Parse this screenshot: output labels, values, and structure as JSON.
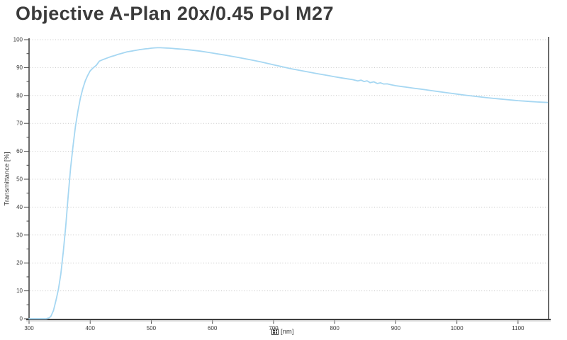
{
  "header": {
    "title_color": "#3b3b3b"
  },
  "chart_data": {
    "type": "line",
    "title": "Objective A-Plan 20x/0.45 Pol M27",
    "xlabel": "[nm]",
    "xlabel_prefix_icon": "missing-glyph-box",
    "ylabel": "Transmittance [%]",
    "xlim": [
      300,
      1150
    ],
    "ylim": [
      0,
      100
    ],
    "x_ticks": [
      300,
      400,
      500,
      600,
      700,
      800,
      900,
      1000,
      1100
    ],
    "y_ticks": [
      0,
      10,
      20,
      30,
      40,
      50,
      60,
      70,
      80,
      90,
      100
    ],
    "y_minor_tick_step": 5,
    "grid": "horizontal-dotted",
    "legend": "none",
    "line_color": "#a6d7f2",
    "series": [
      {
        "name": "Transmittance",
        "points": [
          [
            300,
            0
          ],
          [
            310,
            0
          ],
          [
            320,
            0
          ],
          [
            328,
            0
          ],
          [
            333,
            0.3
          ],
          [
            336,
            1
          ],
          [
            340,
            3
          ],
          [
            344,
            6.5
          ],
          [
            348,
            10.5
          ],
          [
            352,
            16
          ],
          [
            356,
            24
          ],
          [
            360,
            33
          ],
          [
            364,
            44
          ],
          [
            368,
            54
          ],
          [
            372,
            62
          ],
          [
            376,
            69
          ],
          [
            380,
            74.5
          ],
          [
            384,
            79
          ],
          [
            388,
            82.5
          ],
          [
            392,
            85.2
          ],
          [
            396,
            87.2
          ],
          [
            400,
            88.8
          ],
          [
            405,
            89.9
          ],
          [
            410,
            90.8
          ],
          [
            415,
            92.3
          ],
          [
            420,
            92.8
          ],
          [
            425,
            93.2
          ],
          [
            430,
            93.6
          ],
          [
            435,
            94
          ],
          [
            440,
            94.3
          ],
          [
            445,
            94.7
          ],
          [
            450,
            95
          ],
          [
            455,
            95.3
          ],
          [
            460,
            95.6
          ],
          [
            465,
            95.8
          ],
          [
            470,
            96
          ],
          [
            475,
            96.2
          ],
          [
            480,
            96.4
          ],
          [
            485,
            96.55
          ],
          [
            490,
            96.7
          ],
          [
            495,
            96.8
          ],
          [
            500,
            96.95
          ],
          [
            505,
            97.05
          ],
          [
            510,
            97.1
          ],
          [
            515,
            97.1
          ],
          [
            520,
            97.05
          ],
          [
            525,
            97
          ],
          [
            530,
            96.95
          ],
          [
            535,
            96.85
          ],
          [
            540,
            96.75
          ],
          [
            550,
            96.6
          ],
          [
            560,
            96.4
          ],
          [
            570,
            96.15
          ],
          [
            580,
            95.9
          ],
          [
            590,
            95.55
          ],
          [
            600,
            95.2
          ],
          [
            610,
            94.85
          ],
          [
            620,
            94.5
          ],
          [
            630,
            94.1
          ],
          [
            640,
            93.7
          ],
          [
            650,
            93.3
          ],
          [
            660,
            92.9
          ],
          [
            670,
            92.45
          ],
          [
            680,
            92
          ],
          [
            690,
            91.5
          ],
          [
            700,
            91
          ],
          [
            710,
            90.5
          ],
          [
            720,
            90
          ],
          [
            730,
            89.55
          ],
          [
            740,
            89.1
          ],
          [
            750,
            88.7
          ],
          [
            760,
            88.3
          ],
          [
            770,
            87.9
          ],
          [
            780,
            87.5
          ],
          [
            790,
            87.1
          ],
          [
            800,
            86.7
          ],
          [
            810,
            86.35
          ],
          [
            820,
            86
          ],
          [
            830,
            85.65
          ],
          [
            838,
            85.2
          ],
          [
            843,
            85.5
          ],
          [
            848,
            85
          ],
          [
            853,
            85.25
          ],
          [
            858,
            84.6
          ],
          [
            864,
            84.9
          ],
          [
            870,
            84.3
          ],
          [
            875,
            84.55
          ],
          [
            880,
            84.1
          ],
          [
            886,
            84.15
          ],
          [
            892,
            83.85
          ],
          [
            900,
            83.5
          ],
          [
            910,
            83.2
          ],
          [
            920,
            82.9
          ],
          [
            930,
            82.6
          ],
          [
            940,
            82.3
          ],
          [
            950,
            82
          ],
          [
            960,
            81.7
          ],
          [
            970,
            81.4
          ],
          [
            980,
            81.1
          ],
          [
            990,
            80.8
          ],
          [
            1000,
            80.5
          ],
          [
            1010,
            80.2
          ],
          [
            1020,
            79.95
          ],
          [
            1030,
            79.7
          ],
          [
            1040,
            79.45
          ],
          [
            1050,
            79.2
          ],
          [
            1060,
            78.95
          ],
          [
            1070,
            78.75
          ],
          [
            1080,
            78.55
          ],
          [
            1090,
            78.35
          ],
          [
            1100,
            78.15
          ],
          [
            1110,
            78
          ],
          [
            1120,
            77.85
          ],
          [
            1130,
            77.7
          ],
          [
            1140,
            77.6
          ],
          [
            1148,
            77.5
          ]
        ]
      }
    ]
  }
}
